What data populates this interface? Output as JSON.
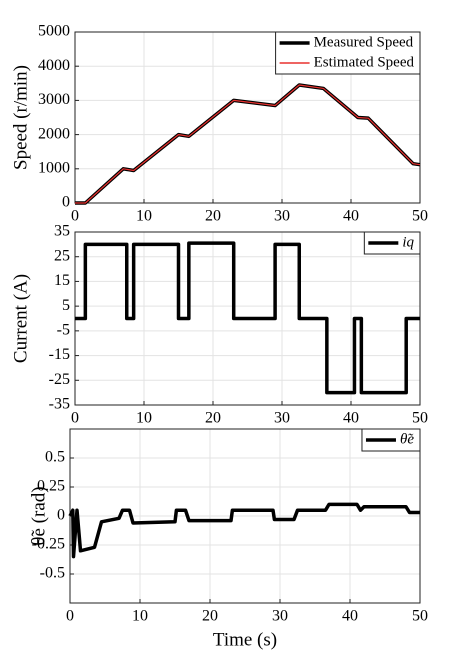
{
  "chart_data": [
    {
      "type": "line",
      "ylabel": "Speed (r/min)",
      "x": [
        0,
        1.5,
        7,
        8.5,
        15,
        16.5,
        23,
        29,
        32.5,
        36,
        41,
        42.5,
        49,
        50
      ],
      "series": [
        {
          "name": "Measured Speed",
          "color": "#000000",
          "values": [
            0,
            0,
            1000,
            950,
            2000,
            1950,
            3000,
            2850,
            3450,
            3350,
            2500,
            2480,
            1150,
            1120
          ]
        },
        {
          "name": "Estimated Speed",
          "color": "#e8312f",
          "values": [
            0,
            0,
            1000,
            950,
            2000,
            1950,
            3000,
            2850,
            3450,
            3350,
            2500,
            2480,
            1150,
            1120
          ]
        }
      ],
      "xlim": [
        0,
        50
      ],
      "xticks": [
        0,
        10,
        20,
        30,
        40,
        50
      ],
      "ylim": [
        0,
        5000
      ],
      "yticks": [
        0,
        1000,
        2000,
        3000,
        4000,
        5000
      ],
      "grid": true,
      "legend": "upper right"
    },
    {
      "type": "line",
      "ylabel": "Current (A)",
      "x": [
        0,
        1.5,
        1.5,
        7.5,
        7.5,
        8.5,
        8.5,
        15,
        15,
        16.5,
        16.5,
        23,
        23,
        29,
        29,
        32.5,
        32.5,
        36.5,
        36.5,
        40.5,
        40.5,
        41.5,
        41.5,
        48,
        48,
        50
      ],
      "series": [
        {
          "name": "iq",
          "color": "#000000",
          "values": [
            0,
            0,
            30,
            30,
            0,
            0,
            30,
            30,
            0,
            0,
            30.5,
            30.5,
            0,
            0,
            30,
            30,
            0,
            0,
            -30,
            -30,
            0,
            0,
            -30,
            -30,
            0,
            0
          ]
        }
      ],
      "xlim": [
        0,
        50
      ],
      "xticks": [
        0,
        10,
        20,
        30,
        40,
        50
      ],
      "ylim": [
        -35,
        35
      ],
      "yticks": [
        -35,
        -25,
        -15,
        -5,
        5,
        15,
        25,
        35
      ],
      "grid": true,
      "legend": "upper right"
    },
    {
      "type": "line",
      "ylabel": "θ̃e (rad)",
      "xlabel": "Time (s)",
      "x": [
        0,
        0.4,
        0.5,
        1,
        1.5,
        3.5,
        4.5,
        7,
        7.5,
        8.5,
        9,
        15,
        15.2,
        16.5,
        17,
        23,
        23.2,
        29,
        29.2,
        32,
        32.5,
        36.5,
        37,
        41,
        41.5,
        42,
        48,
        48.5,
        50
      ],
      "series": [
        {
          "name": "θ̃e",
          "color": "#000000",
          "values": [
            0,
            0.05,
            -0.35,
            0.05,
            -0.3,
            -0.27,
            -0.05,
            -0.02,
            0.05,
            0.05,
            -0.06,
            -0.05,
            0.05,
            0.05,
            -0.04,
            -0.04,
            0.05,
            0.05,
            -0.03,
            -0.03,
            0.05,
            0.05,
            0.1,
            0.1,
            0.05,
            0.08,
            0.08,
            0.03,
            0.03
          ]
        }
      ],
      "xlim": [
        0,
        50
      ],
      "xticks": [
        0,
        10,
        20,
        30,
        40,
        50
      ],
      "ylim": [
        -0.75,
        0.75
      ],
      "yticks": [
        -0.5,
        -0.25,
        0,
        0.25,
        0.5
      ],
      "grid": true,
      "legend": "upper right"
    }
  ]
}
